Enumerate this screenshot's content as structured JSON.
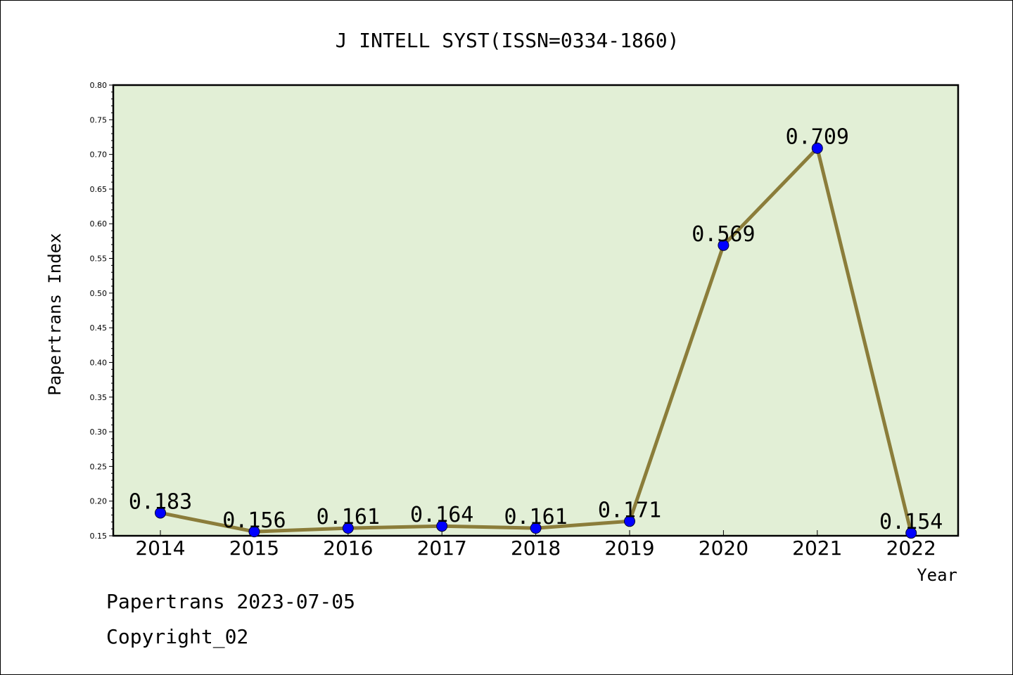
{
  "chart_data": {
    "type": "line",
    "title": "J INTELL SYST(ISSN=0334-1860)",
    "xlabel": "Year",
    "ylabel": "Papertrans Index",
    "categories": [
      "2014",
      "2015",
      "2016",
      "2017",
      "2018",
      "2019",
      "2020",
      "2021",
      "2022"
    ],
    "values": [
      0.183,
      0.156,
      0.161,
      0.164,
      0.161,
      0.171,
      0.569,
      0.709,
      0.154
    ],
    "data_labels": [
      "0.183",
      "0.156",
      "0.161",
      "0.164",
      "0.161",
      "0.171",
      "0.569",
      "0.709",
      "0.154"
    ],
    "ylim": [
      0.15,
      0.8
    ],
    "yticks": [
      "0.15",
      "0.20",
      "0.25",
      "0.30",
      "0.35",
      "0.40",
      "0.45",
      "0.50",
      "0.55",
      "0.60",
      "0.65",
      "0.70",
      "0.75",
      "0.80"
    ],
    "grid": false,
    "colors": {
      "plot_background": "#e2efd6",
      "line": "#8b7d3a",
      "marker": "#0000ff"
    }
  },
  "footer": {
    "line1": "Papertrans 2023-07-05",
    "line2": "Copyright_02"
  }
}
